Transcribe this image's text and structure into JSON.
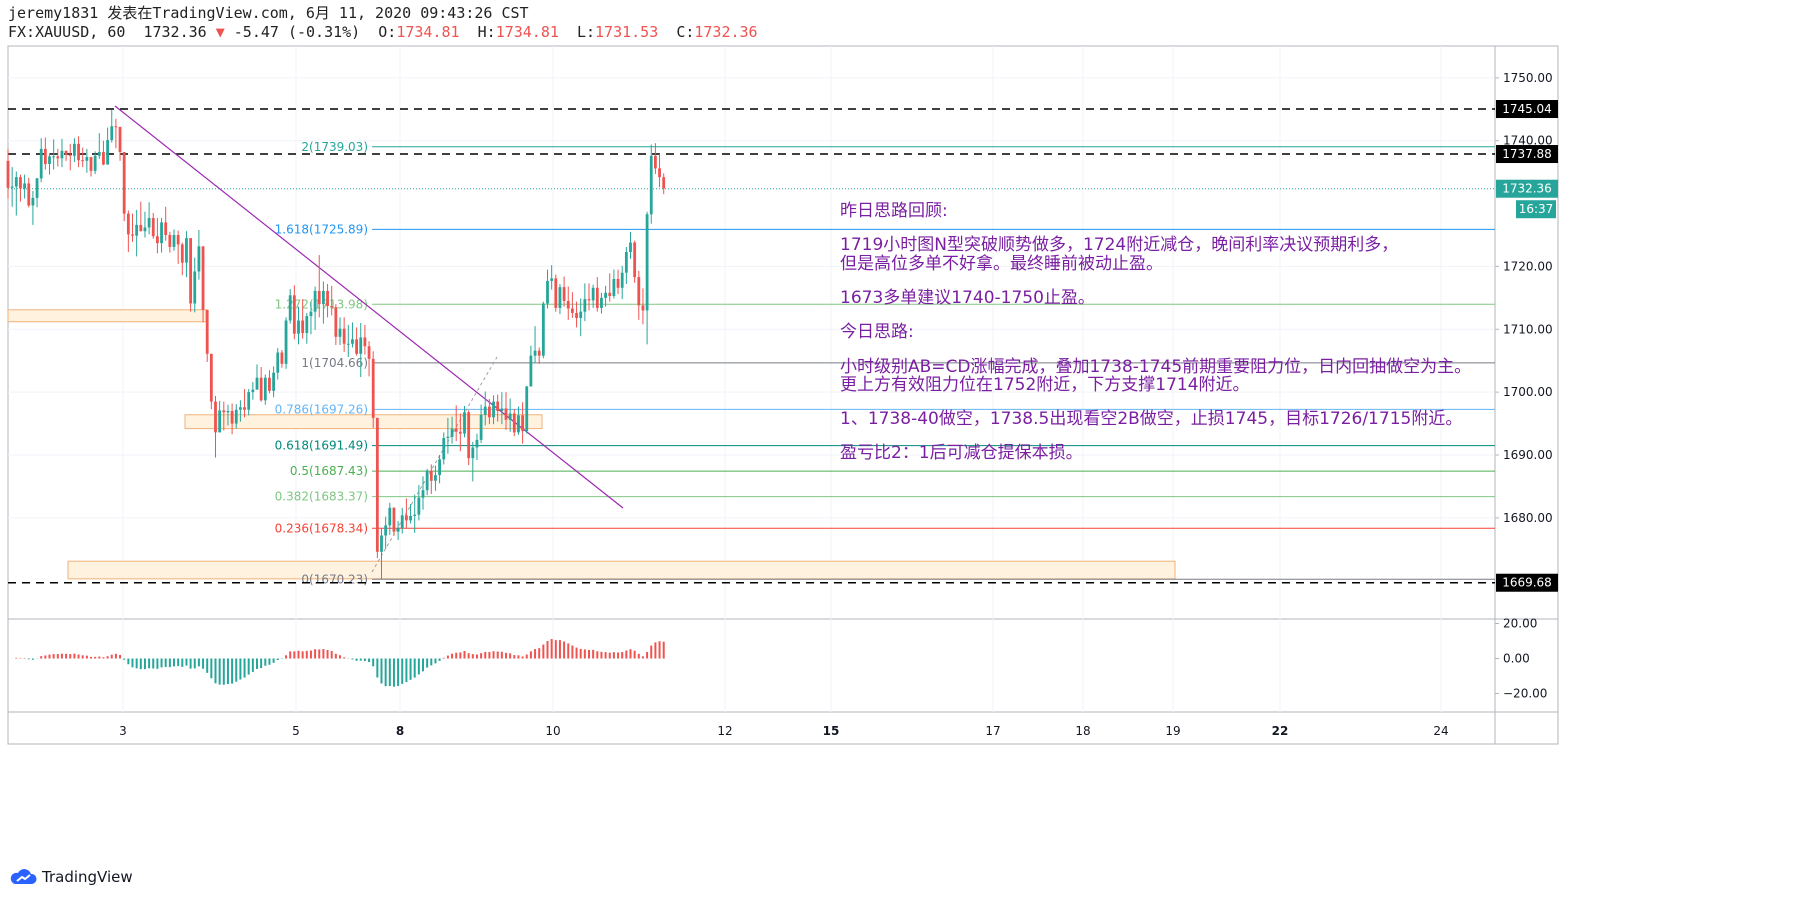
{
  "header": {
    "publish_line": "jeremy1831 发表在TradingView.com, 6月 11, 2020 09:43:26 CST",
    "symbol": "FX:XAUUSD, 60",
    "last": "1732.36",
    "change_arrow": "▼",
    "change": "-5.47 (-0.31%)",
    "o_label": "O:",
    "o_value": "1734.81",
    "h_label": "H:",
    "h_value": "1734.81",
    "l_label": "L:",
    "l_value": "1731.53",
    "c_label": "C:",
    "c_value": "1732.36"
  },
  "footer": {
    "logo_text": "TradingView",
    "logo_icon": "tradingview-cloud-icon"
  },
  "colors": {
    "bull": "#26a69a",
    "bear": "#ef5350",
    "trendline": "#9c27b0",
    "zone_fill": "#fff3e0",
    "zone_stroke": "#f0b27a",
    "annotation": "#7b1fa2"
  },
  "chart_data": {
    "type": "candlestick",
    "symbol": "FX:XAUUSD",
    "timeframe": "60",
    "price_axis": {
      "min": 1665,
      "max": 1754,
      "ticks": [
        1750,
        1740,
        1720,
        1710,
        1700,
        1690,
        1680
      ],
      "tick_labels": [
        "1750.00",
        "1740.00",
        "1720.00",
        "1710.00",
        "1700.00",
        "1690.00",
        "1680.00"
      ]
    },
    "time_axis": {
      "labels": [
        "3",
        "5",
        "8",
        "10",
        "12",
        "15",
        "17",
        "18",
        "19",
        "22",
        "24"
      ],
      "bold": [
        "8",
        "15",
        "22"
      ]
    },
    "price_tags": [
      {
        "label": "1745.04",
        "price": 1745.04,
        "style": "dark"
      },
      {
        "label": "1737.88",
        "price": 1737.88,
        "style": "dark"
      },
      {
        "label": "1732.36",
        "price": 1732.36,
        "style": "teal"
      },
      {
        "label": "16:37",
        "price": 1729.1,
        "style": "teal"
      },
      {
        "label": "1669.68",
        "price": 1669.68,
        "style": "dark"
      }
    ],
    "dashed_levels": [
      1745.04,
      1737.88,
      1669.68
    ],
    "current_price_line": 1732.36,
    "fibonacci": [
      {
        "label": "2(1739.03)",
        "price": 1739.03,
        "color": "#26a69a"
      },
      {
        "label": "1.618(1725.89)",
        "price": 1725.89,
        "color": "#2196f3"
      },
      {
        "label": "1.272(1713.98)",
        "price": 1713.98,
        "color": "#81c784"
      },
      {
        "label": "1(1704.66)",
        "price": 1704.66,
        "color": "#787b86"
      },
      {
        "label": "0.786(1697.26)",
        "price": 1697.26,
        "color": "#64b5f6"
      },
      {
        "label": "0.618(1691.49)",
        "price": 1691.49,
        "color": "#00897b"
      },
      {
        "label": "0.5(1687.43)",
        "price": 1687.43,
        "color": "#4caf50"
      },
      {
        "label": "0.382(1683.37)",
        "price": 1683.37,
        "color": "#81c784"
      },
      {
        "label": "0.236(1678.34)",
        "price": 1678.34,
        "color": "#f44336"
      },
      {
        "label": "0(1670.23)",
        "price": 1670.23,
        "color": "#787b86"
      }
    ],
    "zones": [
      {
        "price_top": 1713.1,
        "price_bottom": 1711.2
      },
      {
        "price_top": 1696.4,
        "price_bottom": 1694.2
      },
      {
        "price_top": 1673.1,
        "price_bottom": 1670.3
      }
    ],
    "oscillator": {
      "ticks": [
        20,
        0,
        -20
      ],
      "tick_labels": [
        "20.00",
        "0.00",
        "−20.00"
      ],
      "min": -30,
      "max": 25
    },
    "annotations": [
      "昨日思路回顾:",
      "1719小时图N型突破顺势做多，1724附近减仓，晚间利率决议预期利多，",
      "但是高位多单不好拿。最终睡前被动止盈。",
      "1673多单建议1740-1750止盈。",
      "今日思路:",
      "小时级别AB=CD涨幅完成，叠加1738-1745前期重要阻力位，日内回抽做空为主。",
      "更上方有效阻力位在1752附近，下方支撑1714附近。",
      "1、1738-40做空，1738.5出现看空2B做空，止损1745，目标1726/1715附近。",
      "盈亏比2：1后可减仓提保本损。"
    ],
    "candles": [
      [
        1736.8,
        1738.7,
        1730.8,
        1732.5
      ],
      [
        1732.5,
        1735.8,
        1729.5,
        1732.7
      ],
      [
        1732.7,
        1735.1,
        1728.1,
        1734.2
      ],
      [
        1734.2,
        1734.6,
        1730.3,
        1732.4
      ],
      [
        1732.4,
        1734.6,
        1730.8,
        1733.2
      ],
      [
        1733.2,
        1734.1,
        1729.4,
        1729.7
      ],
      [
        1729.7,
        1732.0,
        1726.6,
        1730.9
      ],
      [
        1730.9,
        1734.1,
        1729.4,
        1734.0
      ],
      [
        1734.0,
        1740.4,
        1733.4,
        1738.7
      ],
      [
        1738.7,
        1740.5,
        1735.4,
        1736.3
      ],
      [
        1736.3,
        1738.0,
        1734.6,
        1737.5
      ],
      [
        1737.5,
        1740.2,
        1735.4,
        1737.5
      ],
      [
        1737.5,
        1738.7,
        1735.9,
        1737.2
      ],
      [
        1737.2,
        1740.3,
        1735.8,
        1738.4
      ],
      [
        1738.4,
        1738.4,
        1736.8,
        1737.8
      ],
      [
        1737.8,
        1739.5,
        1735.3,
        1737.6
      ],
      [
        1737.6,
        1740.4,
        1736.6,
        1739.5
      ],
      [
        1739.5,
        1740.7,
        1735.8,
        1736.9
      ],
      [
        1736.9,
        1738.9,
        1735.8,
        1736.8
      ],
      [
        1736.8,
        1738.7,
        1734.9,
        1737.4
      ],
      [
        1737.4,
        1737.4,
        1734.3,
        1735.2
      ],
      [
        1735.2,
        1738.3,
        1734.7,
        1737.6
      ],
      [
        1737.6,
        1741.2,
        1737.1,
        1738.2
      ],
      [
        1738.2,
        1740.0,
        1736.1,
        1736.2
      ],
      [
        1736.2,
        1742.1,
        1736.2,
        1740.1
      ],
      [
        1740.1,
        1744.9,
        1739.7,
        1742.3
      ],
      [
        1742.3,
        1743.5,
        1738.8,
        1742.2
      ],
      [
        1742.2,
        1742.2,
        1736.8,
        1738.2
      ],
      [
        1738.2,
        1738.2,
        1727.2,
        1728.4
      ],
      [
        1728.4,
        1728.9,
        1722.3,
        1725.1
      ],
      [
        1725.1,
        1728.4,
        1723.9,
        1724.9
      ],
      [
        1724.9,
        1729.0,
        1721.6,
        1726.6
      ],
      [
        1726.6,
        1730.3,
        1725.6,
        1725.6
      ],
      [
        1725.6,
        1728.7,
        1724.6,
        1726.2
      ],
      [
        1726.2,
        1730.2,
        1725.1,
        1727.7
      ],
      [
        1727.7,
        1728.5,
        1724.4,
        1724.8
      ],
      [
        1724.8,
        1727.7,
        1722.1,
        1723.7
      ],
      [
        1723.7,
        1727.7,
        1722.2,
        1727.0
      ],
      [
        1727.0,
        1729.5,
        1724.1,
        1725.0
      ],
      [
        1725.0,
        1725.5,
        1722.2,
        1723.1
      ],
      [
        1723.1,
        1725.9,
        1722.5,
        1725.0
      ],
      [
        1725.0,
        1725.7,
        1720.4,
        1723.5
      ],
      [
        1723.5,
        1723.8,
        1718.6,
        1720.6
      ],
      [
        1720.6,
        1725.6,
        1718.3,
        1724.5
      ],
      [
        1724.5,
        1724.5,
        1712.8,
        1714.1
      ],
      [
        1714.1,
        1721.4,
        1712.7,
        1719.2
      ],
      [
        1719.2,
        1725.8,
        1717.9,
        1723.2
      ],
      [
        1723.2,
        1723.2,
        1711.1,
        1713.1
      ],
      [
        1713.1,
        1713.1,
        1704.8,
        1706.1
      ],
      [
        1706.1,
        1706.1,
        1697.3,
        1698.5
      ],
      [
        1698.5,
        1699.4,
        1689.6,
        1693.6
      ],
      [
        1693.6,
        1698.6,
        1693.6,
        1697.1
      ],
      [
        1697.1,
        1698.5,
        1693.9,
        1696.8
      ],
      [
        1696.8,
        1698.0,
        1694.7,
        1697.0
      ],
      [
        1697.0,
        1698.2,
        1693.3,
        1695.0
      ],
      [
        1695.0,
        1698.1,
        1694.2,
        1697.2
      ],
      [
        1697.2,
        1698.7,
        1695.3,
        1697.6
      ],
      [
        1697.6,
        1700.5,
        1696.0,
        1697.2
      ],
      [
        1697.2,
        1700.5,
        1696.3,
        1700.0
      ],
      [
        1700.0,
        1701.6,
        1698.8,
        1700.4
      ],
      [
        1700.4,
        1704.4,
        1700.4,
        1702.3
      ],
      [
        1702.3,
        1704.0,
        1698.5,
        1698.7
      ],
      [
        1698.7,
        1702.8,
        1698.0,
        1702.3
      ],
      [
        1702.3,
        1703.5,
        1699.8,
        1700.2
      ],
      [
        1700.2,
        1704.1,
        1699.2,
        1703.1
      ],
      [
        1703.1,
        1707.0,
        1702.0,
        1706.3
      ],
      [
        1706.3,
        1706.7,
        1703.9,
        1704.5
      ],
      [
        1704.5,
        1711.9,
        1703.7,
        1711.4
      ],
      [
        1711.4,
        1716.4,
        1710.9,
        1715.4
      ],
      [
        1715.4,
        1717.0,
        1708.4,
        1709.3
      ],
      [
        1709.3,
        1713.6,
        1707.6,
        1711.4
      ],
      [
        1711.4,
        1714.8,
        1708.5,
        1709.4
      ],
      [
        1709.4,
        1712.6,
        1707.7,
        1712.1
      ],
      [
        1712.1,
        1714.4,
        1709.2,
        1712.8
      ],
      [
        1712.8,
        1716.8,
        1709.9,
        1716.1
      ],
      [
        1716.1,
        1721.8,
        1711.9,
        1714.0
      ],
      [
        1714.0,
        1717.6,
        1710.9,
        1716.1
      ],
      [
        1716.1,
        1717.2,
        1711.9,
        1713.7
      ],
      [
        1713.7,
        1716.9,
        1712.2,
        1713.5
      ],
      [
        1713.5,
        1714.0,
        1707.5,
        1708.8
      ],
      [
        1708.8,
        1711.9,
        1707.5,
        1710.1
      ],
      [
        1710.1,
        1711.9,
        1706.4,
        1707.7
      ],
      [
        1707.7,
        1710.7,
        1705.6,
        1707.7
      ],
      [
        1707.7,
        1711.1,
        1707.1,
        1708.4
      ],
      [
        1708.4,
        1710.3,
        1705.8,
        1706.1
      ],
      [
        1706.1,
        1711.0,
        1702.4,
        1708.7
      ],
      [
        1708.7,
        1710.7,
        1706.0,
        1707.3
      ],
      [
        1707.3,
        1708.1,
        1702.5,
        1705.3
      ],
      [
        1705.3,
        1706.5,
        1694.3,
        1695.9
      ],
      [
        1695.9,
        1695.9,
        1673.6,
        1674.6
      ],
      [
        1674.6,
        1678.4,
        1670.2,
        1677.2
      ],
      [
        1677.2,
        1680.2,
        1675.1,
        1678.8
      ],
      [
        1678.8,
        1682.4,
        1677.3,
        1681.6
      ],
      [
        1681.6,
        1681.7,
        1677.2,
        1677.8
      ],
      [
        1677.8,
        1679.5,
        1676.5,
        1678.4
      ],
      [
        1678.4,
        1681.6,
        1677.5,
        1680.4
      ],
      [
        1680.4,
        1683.1,
        1678.4,
        1679.6
      ],
      [
        1679.6,
        1682.2,
        1679.1,
        1680.3
      ],
      [
        1680.3,
        1683.7,
        1677.6,
        1680.5
      ],
      [
        1680.5,
        1685.2,
        1679.6,
        1683.2
      ],
      [
        1683.2,
        1686.6,
        1681.3,
        1684.4
      ],
      [
        1684.4,
        1687.8,
        1683.6,
        1687.5
      ],
      [
        1687.5,
        1688.5,
        1683.8,
        1685.9
      ],
      [
        1685.9,
        1688.3,
        1684.3,
        1686.8
      ],
      [
        1686.8,
        1690.0,
        1685.5,
        1689.3
      ],
      [
        1689.3,
        1693.6,
        1688.5,
        1692.7
      ],
      [
        1692.7,
        1695.9,
        1690.2,
        1692.9
      ],
      [
        1692.9,
        1696.1,
        1691.8,
        1694.2
      ],
      [
        1694.2,
        1697.9,
        1692.2,
        1693.7
      ],
      [
        1693.7,
        1696.6,
        1690.6,
        1693.4
      ],
      [
        1693.4,
        1697.8,
        1692.8,
        1696.8
      ],
      [
        1696.8,
        1697.1,
        1688.4,
        1689.5
      ],
      [
        1689.5,
        1692.1,
        1685.8,
        1691.2
      ],
      [
        1691.2,
        1693.4,
        1689.2,
        1692.4
      ],
      [
        1692.4,
        1698.0,
        1691.9,
        1696.4
      ],
      [
        1696.4,
        1700.1,
        1694.7,
        1697.7
      ],
      [
        1697.7,
        1698.9,
        1694.9,
        1696.0
      ],
      [
        1696.0,
        1699.5,
        1694.9,
        1698.5
      ],
      [
        1698.5,
        1699.6,
        1695.3,
        1697.0
      ],
      [
        1697.0,
        1700.0,
        1694.9,
        1697.4
      ],
      [
        1697.4,
        1700.0,
        1694.0,
        1695.6
      ],
      [
        1695.6,
        1699.0,
        1693.7,
        1696.6
      ],
      [
        1696.6,
        1697.3,
        1693.0,
        1693.6
      ],
      [
        1693.6,
        1697.7,
        1693.2,
        1696.3
      ],
      [
        1696.3,
        1698.4,
        1691.8,
        1693.8
      ],
      [
        1693.8,
        1701.0,
        1693.4,
        1700.9
      ],
      [
        1700.9,
        1707.4,
        1700.9,
        1705.8
      ],
      [
        1705.8,
        1710.5,
        1704.6,
        1706.6
      ],
      [
        1706.6,
        1707.1,
        1704.5,
        1705.8
      ],
      [
        1705.8,
        1714.4,
        1705.4,
        1714.1
      ],
      [
        1714.1,
        1719.5,
        1713.3,
        1717.7
      ],
      [
        1717.7,
        1720.2,
        1716.3,
        1718.1
      ],
      [
        1718.1,
        1718.7,
        1712.8,
        1713.4
      ],
      [
        1713.4,
        1717.2,
        1712.4,
        1716.7
      ],
      [
        1716.7,
        1718.4,
        1713.6,
        1714.5
      ],
      [
        1714.5,
        1716.8,
        1711.5,
        1713.3
      ],
      [
        1713.3,
        1715.9,
        1711.8,
        1712.6
      ],
      [
        1712.6,
        1714.4,
        1710.3,
        1711.8
      ],
      [
        1711.8,
        1714.9,
        1708.9,
        1712.8
      ],
      [
        1712.8,
        1717.3,
        1711.3,
        1714.8
      ],
      [
        1714.8,
        1717.3,
        1713.0,
        1714.6
      ],
      [
        1714.6,
        1717.1,
        1713.4,
        1716.6
      ],
      [
        1716.6,
        1718.3,
        1712.8,
        1713.4
      ],
      [
        1713.4,
        1715.8,
        1712.5,
        1715.0
      ],
      [
        1715.0,
        1716.9,
        1713.6,
        1715.8
      ],
      [
        1715.8,
        1718.9,
        1714.4,
        1715.3
      ],
      [
        1715.3,
        1719.5,
        1714.9,
        1718.0
      ],
      [
        1718.0,
        1719.5,
        1715.6,
        1716.6
      ],
      [
        1716.6,
        1720.1,
        1714.8,
        1719.0
      ],
      [
        1719.0,
        1723.1,
        1717.2,
        1722.3
      ],
      [
        1722.3,
        1725.5,
        1721.2,
        1723.8
      ],
      [
        1723.8,
        1724.1,
        1717.4,
        1718.3
      ],
      [
        1718.3,
        1719.3,
        1711.5,
        1713.8
      ],
      [
        1713.8,
        1716.5,
        1710.8,
        1713.0
      ],
      [
        1713.0,
        1728.7,
        1707.6,
        1728.3
      ],
      [
        1728.3,
        1739.4,
        1726.8,
        1737.6
      ],
      [
        1737.6,
        1739.6,
        1734.7,
        1735.6
      ],
      [
        1735.6,
        1737.9,
        1732.6,
        1734.2
      ],
      [
        1734.2,
        1734.8,
        1731.5,
        1732.4
      ]
    ]
  }
}
